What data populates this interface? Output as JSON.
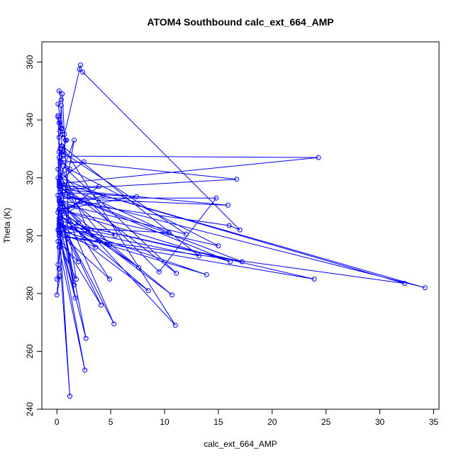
{
  "chart_data": {
    "type": "scatter",
    "title": "ATOM4 Southbound calc_ext_664_AMP",
    "xlabel": "calc_ext_664_AMP",
    "ylabel": "Theta (K)",
    "xlim": [
      -1.4,
      35.5
    ],
    "ylim": [
      240,
      367
    ],
    "xticks": [
      "0",
      "5",
      "10",
      "15",
      "20",
      "25",
      "30",
      "35"
    ],
    "yticks": [
      "240",
      "260",
      "280",
      "300",
      "320",
      "340",
      "360"
    ],
    "grid": false,
    "connected": true,
    "color": "#0000ff",
    "series": [
      {
        "points": [
          [
            0.1,
            341
          ],
          [
            0.2,
            339
          ],
          [
            0.3,
            336
          ],
          [
            0.5,
            335
          ],
          [
            0.4,
            331
          ],
          [
            0.6,
            328
          ],
          [
            0.8,
            333
          ],
          [
            0.7,
            335
          ],
          [
            2.2,
            359
          ],
          [
            2.1,
            357.5
          ],
          [
            2.4,
            356.5
          ],
          [
            17.0,
            302
          ],
          [
            16.0,
            303.5
          ],
          [
            0.3,
            312
          ],
          [
            0.3,
            320
          ],
          [
            0.2,
            318
          ],
          [
            24.3,
            327
          ],
          [
            0.6,
            327.5
          ],
          [
            0.3,
            326
          ],
          [
            16.7,
            319.5
          ],
          [
            0.4,
            316
          ],
          [
            15.9,
            310.5
          ],
          [
            0.2,
            313
          ],
          [
            14.8,
            313
          ],
          [
            9.5,
            287.5
          ],
          [
            0.3,
            322
          ],
          [
            0.5,
            329
          ],
          [
            12.0,
            300.5
          ],
          [
            0.4,
            311
          ],
          [
            10.7,
            279.5
          ],
          [
            0.2,
            309
          ],
          [
            7.6,
            289
          ],
          [
            0.3,
            307
          ],
          [
            8.5,
            281
          ],
          [
            0.2,
            304
          ],
          [
            13.9,
            286.5
          ],
          [
            0.1,
            302
          ],
          [
            0.3,
            314
          ],
          [
            34.2,
            282
          ],
          [
            0.5,
            318
          ],
          [
            32.3,
            283.5
          ],
          [
            0.2,
            300
          ],
          [
            23.9,
            285
          ],
          [
            0.4,
            305
          ],
          [
            17.2,
            291
          ],
          [
            0.3,
            315
          ],
          [
            16.1,
            291
          ],
          [
            0.2,
            309
          ],
          [
            15.0,
            296.5
          ],
          [
            0.6,
            324
          ],
          [
            11.1,
            287
          ],
          [
            0.3,
            318
          ],
          [
            10.4,
            301
          ],
          [
            0.2,
            303
          ],
          [
            13.2,
            293
          ],
          [
            0.5,
            331
          ],
          [
            11.0,
            269
          ],
          [
            0.3,
            312
          ],
          [
            5.3,
            269.5
          ],
          [
            0.2,
            306
          ],
          [
            4.1,
            276
          ],
          [
            0.3,
            299
          ],
          [
            2.6,
            253.5
          ],
          [
            0.2,
            296
          ],
          [
            1.2,
            244.5
          ],
          [
            0.3,
            298
          ],
          [
            1.7,
            278.5
          ],
          [
            0.4,
            308
          ],
          [
            2.7,
            264.5
          ],
          [
            0.2,
            301
          ],
          [
            4.9,
            285
          ],
          [
            0.3,
            311
          ],
          [
            1.6,
            283
          ],
          [
            0.2,
            305
          ],
          [
            2.0,
            291
          ],
          [
            0.1,
            298
          ],
          [
            1.8,
            285
          ],
          [
            0.3,
            320
          ],
          [
            4.3,
            314
          ],
          [
            0.2,
            309
          ],
          [
            7.4,
            313.5
          ],
          [
            0.3,
            315
          ],
          [
            5.4,
            300
          ],
          [
            0.2,
            304
          ],
          [
            4.9,
            297
          ],
          [
            0.4,
            317
          ],
          [
            3.9,
            317
          ],
          [
            0.3,
            307
          ],
          [
            3.6,
            296
          ],
          [
            0.2,
            301
          ],
          [
            2.9,
            301.5
          ],
          [
            0.3,
            325
          ],
          [
            2.5,
            325.5
          ],
          [
            0.2,
            319
          ],
          [
            1.6,
            333
          ],
          [
            0.3,
            306
          ],
          [
            1.8,
            310
          ],
          [
            0.2,
            312
          ],
          [
            2.0,
            304.5
          ],
          [
            0.3,
            301
          ],
          [
            1.1,
            305
          ],
          [
            0.5,
            349
          ],
          [
            0.2,
            350
          ],
          [
            0.4,
            347
          ],
          [
            0.1,
            345.5
          ],
          [
            0.5,
            337
          ],
          [
            0.4,
            345
          ],
          [
            0.3,
            336
          ],
          [
            0.9,
            333
          ],
          [
            0.2,
            327
          ],
          [
            1.2,
            323
          ],
          [
            0.3,
            321
          ],
          [
            1.3,
            314
          ],
          [
            0.2,
            317
          ],
          [
            2.3,
            312
          ],
          [
            0.1,
            308
          ],
          [
            0.1,
            320
          ],
          [
            0.1,
            290
          ],
          [
            0.2,
            288.5
          ],
          [
            0.0,
            279.5
          ],
          [
            0.3,
            286
          ],
          [
            0.0,
            285
          ],
          [
            0.3,
            297
          ],
          [
            0.2,
            302
          ],
          [
            0.1,
            314
          ],
          [
            0.2,
            329
          ],
          [
            0.1,
            341.5
          ],
          [
            0.4,
            337
          ],
          [
            0.2,
            334
          ],
          [
            0.3,
            317
          ],
          [
            0.1,
            323
          ],
          [
            0.3,
            330
          ]
        ]
      }
    ]
  }
}
